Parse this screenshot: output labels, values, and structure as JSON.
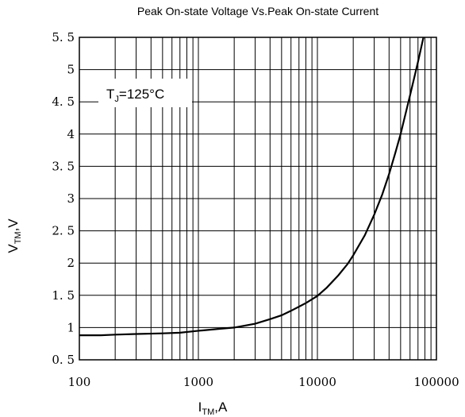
{
  "chart_data": {
    "type": "line",
    "title": "Peak On-state Voltage Vs.Peak On-state Current",
    "xlabel": {
      "main": "I",
      "sub": "TM",
      "rest": ",A"
    },
    "ylabel": {
      "main": "V",
      "sub": "TM",
      "rest": ",V"
    },
    "xscale": "log",
    "xlim": [
      100,
      100000
    ],
    "ylim": [
      0.5,
      5.5
    ],
    "grid": true,
    "x_tick_labels": [
      "100",
      "1000",
      "10000",
      "100000"
    ],
    "y_tick_labels": [
      "0. 5",
      "1",
      "1. 5",
      "2",
      "2. 5",
      "3",
      "3. 5",
      "4",
      "4. 5",
      "5",
      "5. 5"
    ],
    "annotation": {
      "main": "T",
      "sub": "J",
      "rest": "=125°C"
    },
    "series": [
      {
        "x": [
          100,
          150,
          200,
          300,
          500,
          700,
          1000,
          1500,
          2000,
          3000,
          4000,
          5000,
          6000,
          8000,
          10000,
          12000,
          15000,
          18000,
          20000,
          25000,
          30000,
          35000,
          40000,
          45000,
          50000,
          60000,
          70000,
          80000
        ],
        "y": [
          0.88,
          0.88,
          0.89,
          0.9,
          0.91,
          0.92,
          0.95,
          0.98,
          1.0,
          1.06,
          1.13,
          1.19,
          1.26,
          1.38,
          1.49,
          1.62,
          1.81,
          1.99,
          2.12,
          2.43,
          2.75,
          3.06,
          3.38,
          3.7,
          4.0,
          4.6,
          5.12,
          5.6
        ]
      }
    ]
  }
}
